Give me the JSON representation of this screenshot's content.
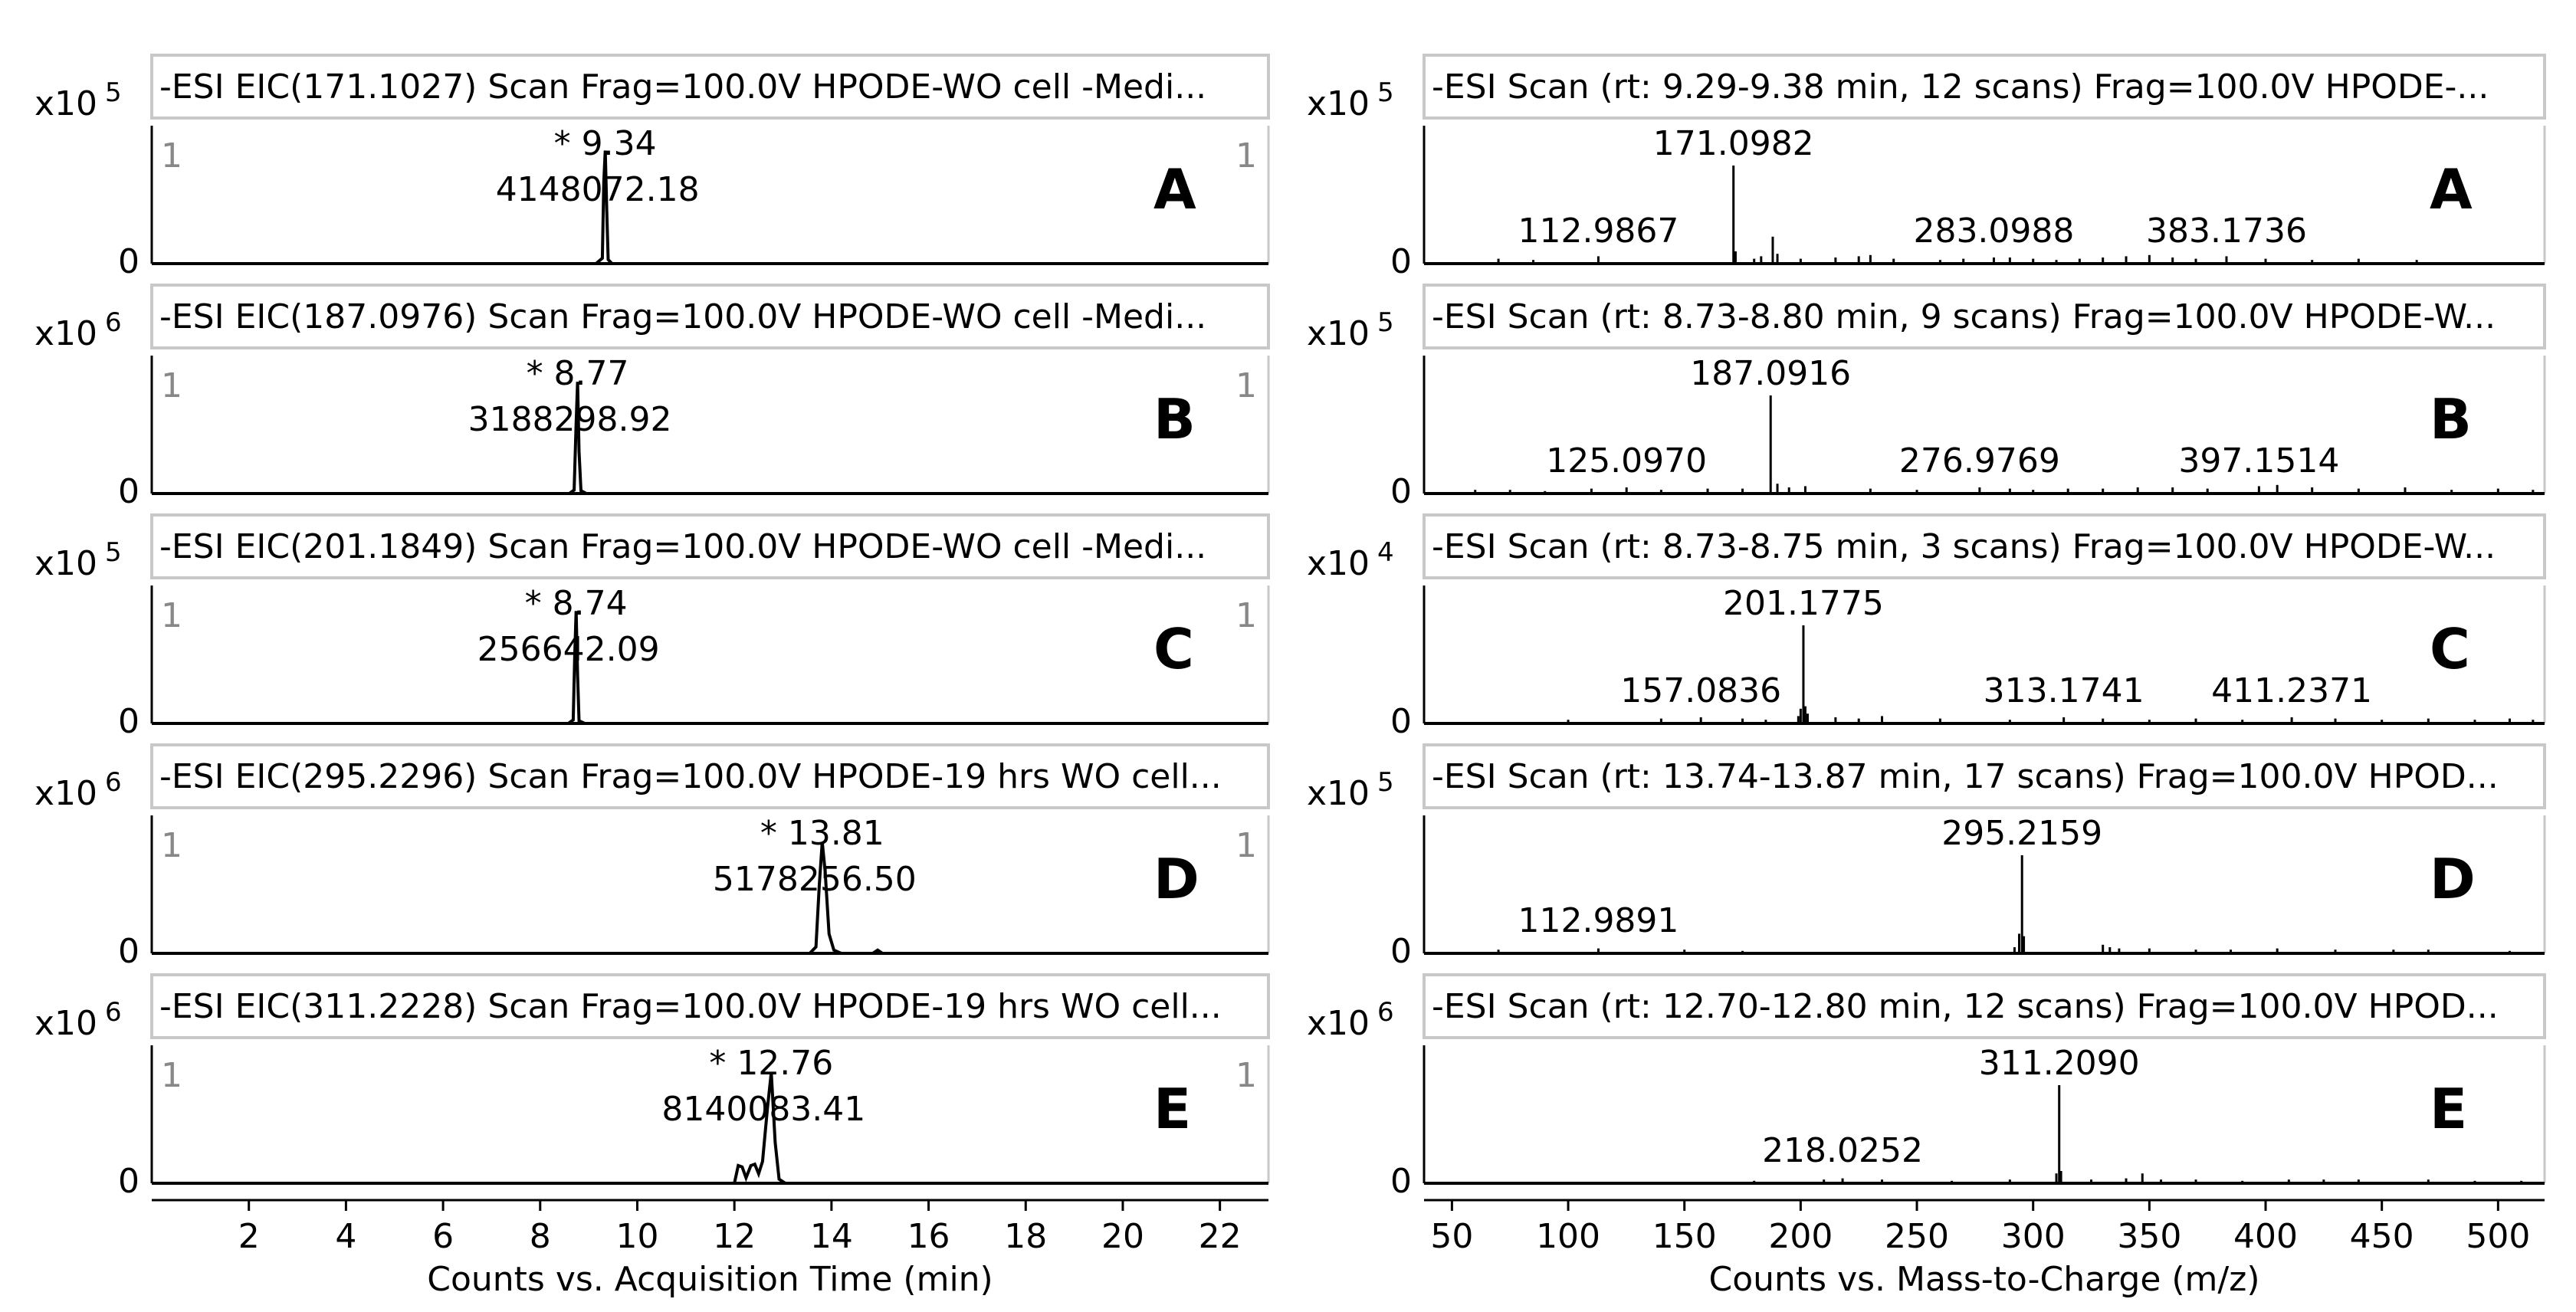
{
  "chart_data": [
    {
      "type": "line",
      "layout_group": "chromatograms",
      "header": "-ESI EIC(171.1027) Scan Frag=100.0V HPODE-WO cell -Medi...",
      "y_exp_label": "x10",
      "y_exp": "5",
      "y_zero_label": "0",
      "y_max": 4500000,
      "panel_letter": "A",
      "left_marker": "1",
      "right_marker": "1",
      "peak_labels": [
        "* 9.34",
        "4148072.18"
      ],
      "x": [
        9.15,
        9.28,
        9.31,
        9.34,
        9.37,
        9.4,
        9.48
      ],
      "y": [
        0,
        200000,
        3000000,
        4148072,
        2000000,
        150000,
        0
      ]
    },
    {
      "type": "line",
      "layout_group": "chromatograms",
      "header": "-ESI EIC(187.0976) Scan Frag=100.0V HPODE-WO cell -Medi...",
      "y_exp_label": "x10",
      "y_exp": "6",
      "y_zero_label": "0",
      "y_max": 3500000,
      "panel_letter": "B",
      "left_marker": "1",
      "right_marker": "1",
      "peak_labels": [
        "* 8.77",
        "3188298.92"
      ],
      "x": [
        8.6,
        8.7,
        8.74,
        8.77,
        8.8,
        8.84,
        8.95
      ],
      "y": [
        0,
        100000,
        2000000,
        3188299,
        1200000,
        80000,
        0
      ]
    },
    {
      "type": "line",
      "layout_group": "chromatograms",
      "header": "-ESI EIC(201.1849) Scan Frag=100.0V HPODE-WO cell -Medi...",
      "y_exp_label": "x10",
      "y_exp": "5",
      "y_zero_label": "0",
      "y_max": 280000,
      "panel_letter": "C",
      "left_marker": "1",
      "right_marker": "1",
      "peak_labels": [
        "* 8.74",
        "256642.09"
      ],
      "x": [
        8.58,
        8.68,
        8.71,
        8.74,
        8.77,
        8.8,
        8.92
      ],
      "y": [
        0,
        8000,
        150000,
        256642,
        110000,
        6000,
        0
      ]
    },
    {
      "type": "line",
      "layout_group": "chromatograms",
      "header": "-ESI EIC(295.2296) Scan Frag=100.0V HPODE-19 hrs WO cell...",
      "y_exp_label": "x10",
      "y_exp": "6",
      "y_zero_label": "0",
      "y_max": 5700000,
      "panel_letter": "D",
      "left_marker": "1",
      "right_marker": "1",
      "peak_labels": [
        "* 13.81",
        "5178256.50"
      ],
      "x": [
        13.55,
        13.68,
        13.75,
        13.81,
        13.87,
        13.95,
        14.05,
        14.2,
        14.85,
        14.95,
        15.05,
        15.2
      ],
      "y": [
        0,
        300000,
        3200000,
        5178257,
        3800000,
        900000,
        150000,
        0,
        0,
        150000,
        0,
        0
      ]
    },
    {
      "type": "line",
      "layout_group": "chromatograms",
      "header": "-ESI EIC(311.2228) Scan Frag=100.0V HPODE-19 hrs WO cell...",
      "y_exp_label": "x10",
      "y_exp": "6",
      "y_zero_label": "0",
      "y_max": 9000000,
      "panel_letter": "E",
      "left_marker": "1",
      "right_marker": "1",
      "peak_labels": [
        "* 12.76",
        "8140083.41"
      ],
      "x": [
        11.9,
        12.0,
        12.08,
        12.16,
        12.24,
        12.34,
        12.42,
        12.5,
        12.58,
        12.68,
        12.76,
        12.84,
        12.92,
        13.05
      ],
      "y": [
        0,
        0,
        1300000,
        1200000,
        400000,
        1300000,
        1400000,
        700000,
        1600000,
        5500000,
        8140083,
        3000000,
        300000,
        0
      ]
    },
    {
      "type": "bar",
      "layout_group": "spectra",
      "header": "-ESI Scan (rt: 9.29-9.38 min, 12 scans) Frag=100.0V HPODE-...",
      "y_exp_label": "x10",
      "y_exp": "5",
      "y_zero_label": "0",
      "y_max": 100,
      "panel_letter": "A",
      "peak_labels": [
        {
          "mz": 171.0982,
          "text": "171.0982"
        },
        {
          "mz": 112.9867,
          "text": "112.9867"
        },
        {
          "mz": 283.0988,
          "text": "283.0988"
        },
        {
          "mz": 383.1736,
          "text": "383.1736"
        }
      ],
      "mz": [
        70,
        85,
        112.98,
        171.1,
        172,
        180,
        183,
        188,
        190,
        200,
        215,
        225,
        230,
        240,
        260,
        270,
        283.1,
        290,
        300,
        310,
        320,
        330,
        340,
        350,
        360,
        370,
        383.17,
        400,
        420,
        440,
        465
      ],
      "intensity": [
        4,
        3,
        6,
        80,
        10,
        4,
        6,
        22,
        8,
        4,
        5,
        6,
        7,
        4,
        3,
        4,
        5,
        5,
        4,
        3,
        4,
        5,
        6,
        7,
        5,
        4,
        6,
        4,
        3,
        4,
        3
      ]
    },
    {
      "type": "bar",
      "layout_group": "spectra",
      "header": "-ESI Scan (rt: 8.73-8.80 min, 9 scans) Frag=100.0V HPODE-W...",
      "y_exp_label": "x10",
      "y_exp": "5",
      "y_zero_label": "0",
      "y_max": 100,
      "panel_letter": "B",
      "peak_labels": [
        {
          "mz": 187.0916,
          "text": "187.0916"
        },
        {
          "mz": 125.097,
          "text": "125.0970"
        },
        {
          "mz": 276.9769,
          "text": "276.9769"
        },
        {
          "mz": 397.1514,
          "text": "397.1514"
        }
      ],
      "mz": [
        60,
        75,
        90,
        110,
        125.1,
        140,
        160,
        175,
        187.09,
        190,
        195,
        202,
        230,
        250,
        276.98,
        290,
        300,
        315,
        330,
        345,
        360,
        375,
        397.15,
        405,
        420,
        440,
        460,
        480,
        500,
        515
      ],
      "intensity": [
        3,
        3,
        2,
        4,
        5,
        3,
        4,
        4,
        80,
        8,
        5,
        6,
        4,
        3,
        5,
        4,
        3,
        4,
        4,
        5,
        5,
        4,
        6,
        7,
        5,
        4,
        5,
        3,
        4,
        3
      ]
    },
    {
      "type": "bar",
      "layout_group": "spectra",
      "header": "-ESI Scan (rt: 8.73-8.75 min, 3 scans) Frag=100.0V HPODE-W...",
      "y_exp_label": "x10",
      "y_exp": "4",
      "y_zero_label": "0",
      "y_max": 100,
      "panel_letter": "C",
      "peak_labels": [
        {
          "mz": 201.1775,
          "text": "201.1775"
        },
        {
          "mz": 157.0836,
          "text": "157.0836"
        },
        {
          "mz": 313.1741,
          "text": "313.1741"
        },
        {
          "mz": 411.2371,
          "text": "411.2371"
        }
      ],
      "mz": [
        100,
        140,
        157.08,
        175,
        185,
        199,
        200,
        201.18,
        202,
        203,
        215,
        225,
        235,
        260,
        290,
        313.17,
        330,
        350,
        370,
        390,
        411.24,
        430,
        450,
        470,
        490,
        505,
        515
      ],
      "intensity": [
        3,
        4,
        5,
        4,
        3,
        6,
        12,
        80,
        14,
        8,
        5,
        4,
        6,
        4,
        3,
        5,
        4,
        3,
        4,
        3,
        5,
        4,
        3,
        4,
        3,
        4,
        3
      ]
    },
    {
      "type": "bar",
      "layout_group": "spectra",
      "header": "-ESI Scan (rt: 13.74-13.87 min, 17 scans) Frag=100.0V HPOD...",
      "y_exp_label": "x10",
      "y_exp": "5",
      "y_zero_label": "0",
      "y_max": 100,
      "panel_letter": "D",
      "peak_labels": [
        {
          "mz": 295.2159,
          "text": "295.2159"
        },
        {
          "mz": 112.9891,
          "text": "112.9891"
        }
      ],
      "mz": [
        70,
        112.99,
        150,
        175,
        292,
        294,
        295.22,
        296,
        330,
        333,
        337,
        350,
        370,
        385,
        405,
        430,
        455,
        470,
        505
      ],
      "intensity": [
        3,
        4,
        3,
        2,
        5,
        16,
        80,
        14,
        7,
        5,
        4,
        4,
        3,
        3,
        4,
        3,
        3,
        3,
        2
      ]
    },
    {
      "type": "bar",
      "layout_group": "spectra",
      "header": "-ESI Scan (rt: 12.70-12.80 min, 12 scans) Frag=100.0V HPOD...",
      "y_exp_label": "x10",
      "y_exp": "6",
      "y_zero_label": "0",
      "y_max": 100,
      "panel_letter": "E",
      "peak_labels": [
        {
          "mz": 311.209,
          "text": "311.2090"
        },
        {
          "mz": 218.0252,
          "text": "218.0252"
        }
      ],
      "mz": [
        180,
        210,
        218.03,
        235,
        265,
        290,
        310,
        311.21,
        312,
        325,
        340,
        347,
        355,
        370,
        390,
        410,
        425,
        440,
        470,
        490,
        510
      ],
      "intensity": [
        2,
        3,
        4,
        3,
        2,
        3,
        8,
        80,
        10,
        3,
        4,
        8,
        3,
        3,
        2,
        3,
        3,
        3,
        3,
        2,
        2
      ]
    }
  ],
  "x_axes": {
    "left": {
      "min": 0,
      "max": 23,
      "ticks": [
        2,
        4,
        6,
        8,
        10,
        12,
        14,
        16,
        18,
        20,
        22
      ],
      "title": "Counts vs. Acquisition Time (min)"
    },
    "right": {
      "min": 38,
      "max": 520,
      "ticks": [
        50,
        100,
        150,
        200,
        250,
        300,
        350,
        400,
        450,
        500
      ],
      "title": "Counts vs. Mass-to-Charge (m/z)"
    }
  }
}
